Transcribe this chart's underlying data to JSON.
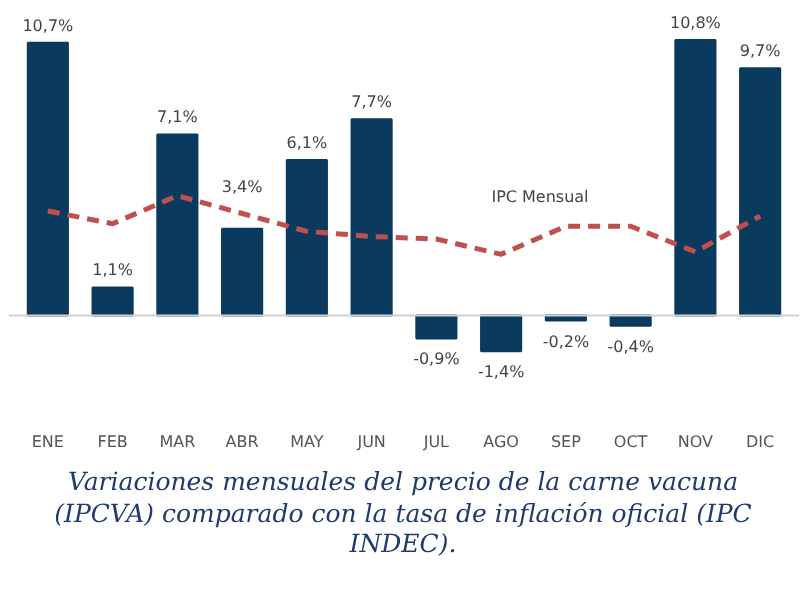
{
  "chart_data": {
    "type": "bar",
    "title": "Variaciones mensuales del precio de la carne vacuna (IPCVA) comparado con la tasa de inflación oficial (IPC INDEC).",
    "categories": [
      "ENE",
      "FEB",
      "MAR",
      "ABR",
      "MAY",
      "JUN",
      "JUL",
      "AGO",
      "SEP",
      "OCT",
      "NOV",
      "DIC"
    ],
    "tick_labels": "x",
    "grid": false,
    "series": [
      {
        "color": "#0b3a5f",
        "values": [
          10.7,
          1.1,
          7.1,
          3.4,
          6.1,
          7.7,
          -0.9,
          -1.4,
          -0.2,
          -0.4,
          10.8,
          9.7
        ],
        "value_labels": [
          "10,7%",
          "1,1%",
          "7,1%",
          "3,4%",
          "6,1%",
          "7,7%",
          "-0,9%",
          "-1,4%",
          "-0,2%",
          "-0,4%",
          "10,8%",
          "9,7%"
        ]
      },
      {
        "type": "line",
        "name": "IPC Mensual",
        "color": "#c0504d",
        "line_style": "dashed",
        "marker": "none",
        "values": [
          4.1,
          3.6,
          4.7,
          4.0,
          3.3,
          3.1,
          3.0,
          2.4,
          3.5,
          3.5,
          2.5,
          3.9
        ]
      }
    ]
  }
}
